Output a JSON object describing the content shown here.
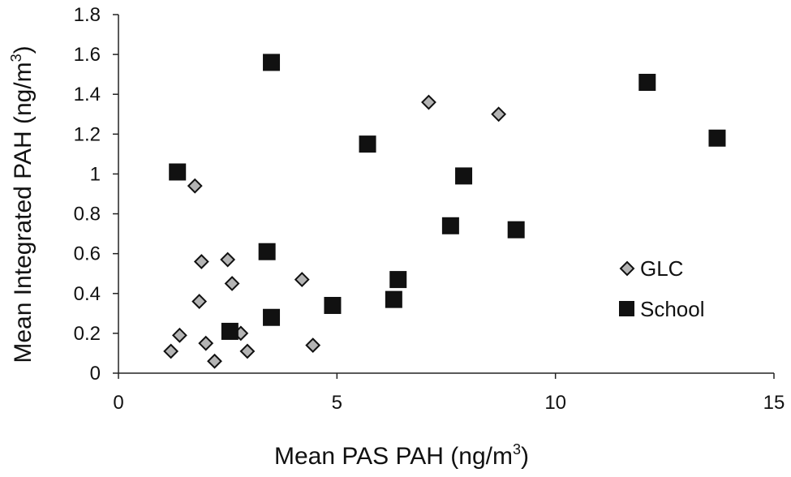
{
  "chart_data": {
    "type": "scatter",
    "xlabel": "Mean PAS PAH (ng/m",
    "xlabel_sup": "3",
    "xlabel_end": ")",
    "ylabel": "Mean Integrated PAH (ng/m",
    "ylabel_sup": "3",
    "ylabel_end": ")",
    "xlim": [
      0,
      15
    ],
    "ylim": [
      0,
      1.8
    ],
    "x_ticks": [
      "0",
      "5",
      "10",
      "15"
    ],
    "x_tick_values": [
      0,
      5,
      10,
      15
    ],
    "y_ticks": [
      "0",
      "0.2",
      "0.4",
      "0.6",
      "0.8",
      "1",
      "1.2",
      "1.4",
      "1.6",
      "1.8"
    ],
    "y_tick_values": [
      0,
      0.2,
      0.4,
      0.6,
      0.8,
      1.0,
      1.2,
      1.4,
      1.6,
      1.8
    ],
    "grid": false,
    "legend": "right",
    "series": [
      {
        "name": "GLC",
        "marker": "diamond",
        "fill": "#b4b4b4",
        "stroke": "#111111",
        "points": [
          [
            1.75,
            0.94
          ],
          [
            1.9,
            0.56
          ],
          [
            2.5,
            0.57
          ],
          [
            1.85,
            0.36
          ],
          [
            2.6,
            0.45
          ],
          [
            4.2,
            0.47
          ],
          [
            7.1,
            1.36
          ],
          [
            8.7,
            1.3
          ],
          [
            1.4,
            0.19
          ],
          [
            1.2,
            0.11
          ],
          [
            2.0,
            0.15
          ],
          [
            2.2,
            0.06
          ],
          [
            2.8,
            0.2
          ],
          [
            2.95,
            0.11
          ],
          [
            4.45,
            0.14
          ]
        ]
      },
      {
        "name": "School",
        "marker": "square",
        "fill": "#111111",
        "stroke": "#111111",
        "points": [
          [
            3.5,
            1.56
          ],
          [
            1.35,
            1.01
          ],
          [
            5.7,
            1.15
          ],
          [
            7.9,
            0.99
          ],
          [
            7.6,
            0.74
          ],
          [
            9.1,
            0.72
          ],
          [
            12.1,
            1.46
          ],
          [
            13.7,
            1.18
          ],
          [
            3.4,
            0.61
          ],
          [
            6.4,
            0.47
          ],
          [
            6.3,
            0.37
          ],
          [
            4.9,
            0.34
          ],
          [
            3.5,
            0.28
          ],
          [
            2.55,
            0.21
          ]
        ]
      }
    ]
  }
}
